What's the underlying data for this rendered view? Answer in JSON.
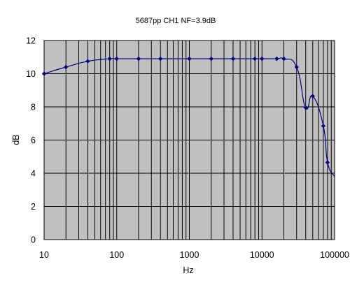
{
  "chart_data": {
    "type": "line",
    "title": "5687pp CH1 NF=3.9dB",
    "xlabel": "Hz",
    "ylabel": "dB",
    "x_scale": "log",
    "xlim": [
      10,
      100000
    ],
    "ylim": [
      0,
      12
    ],
    "x_ticks": [
      "10",
      "100",
      "1000",
      "10000",
      "100000"
    ],
    "y_ticks": [
      "0",
      "2",
      "4",
      "6",
      "8",
      "10",
      "12"
    ],
    "grid": true,
    "plot_background": "#c0c0c0",
    "line_color": "#000080",
    "series": [
      {
        "x": [
          10,
          20,
          40,
          80,
          100,
          200,
          400,
          1000,
          2000,
          4000,
          8000,
          10000,
          16000,
          20000,
          30000,
          40000,
          50000,
          70000,
          80000,
          100000
        ],
        "values": [
          10.0,
          10.4,
          10.75,
          10.9,
          10.9,
          10.9,
          10.9,
          10.9,
          10.9,
          10.9,
          10.9,
          10.9,
          10.9,
          10.9,
          10.4,
          7.95,
          8.65,
          6.85,
          4.65,
          3.8
        ],
        "markers": [
          true,
          true,
          true,
          true,
          true,
          true,
          true,
          true,
          true,
          true,
          true,
          true,
          true,
          true,
          true,
          true,
          true,
          true,
          true,
          false
        ]
      }
    ]
  }
}
